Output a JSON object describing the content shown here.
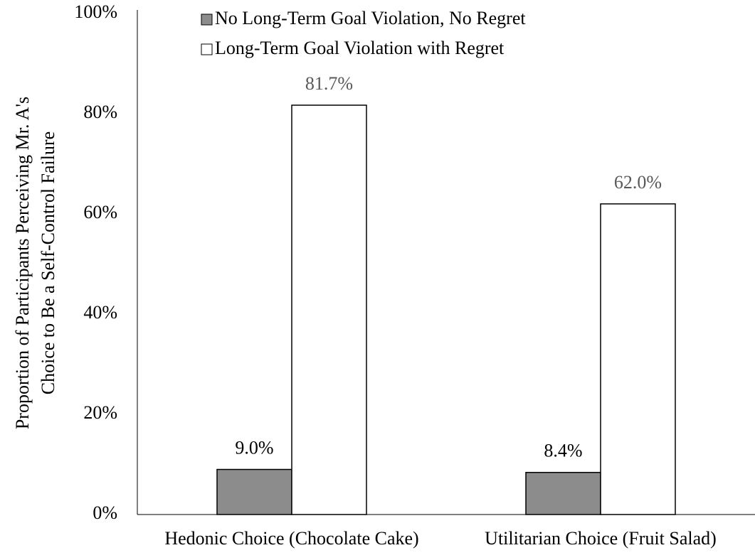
{
  "chart_data": {
    "type": "bar",
    "ylabel": [
      "Proportion of Participants Perceiving Mr. A's",
      "Choice to Be a Self-Control Failure"
    ],
    "categories": [
      "Hedonic Choice (Chocolate Cake)",
      "Utilitarian Choice (Fruit Salad)"
    ],
    "series": [
      {
        "name": "No Long-Term Goal Violation, No Regret",
        "color": "#8c8c8c",
        "label_color": "#000000",
        "values": [
          9.0,
          8.4
        ],
        "value_labels": [
          "9.0%",
          "8.4%"
        ]
      },
      {
        "name": "Long-Term Goal Violation with Regret",
        "color": "#ffffff",
        "label_color": "#595959",
        "values": [
          81.7,
          62.0
        ],
        "value_labels": [
          "81.7%",
          "62.0%"
        ]
      }
    ],
    "ylim": [
      0,
      100
    ],
    "yticks": [
      {
        "value": 0,
        "label": "0%"
      },
      {
        "value": 20,
        "label": "20%"
      },
      {
        "value": 40,
        "label": "40%"
      },
      {
        "value": 60,
        "label": "60%"
      },
      {
        "value": 80,
        "label": "80%"
      },
      {
        "value": 100,
        "label": "100%"
      }
    ],
    "grid": false,
    "legend": "top"
  }
}
